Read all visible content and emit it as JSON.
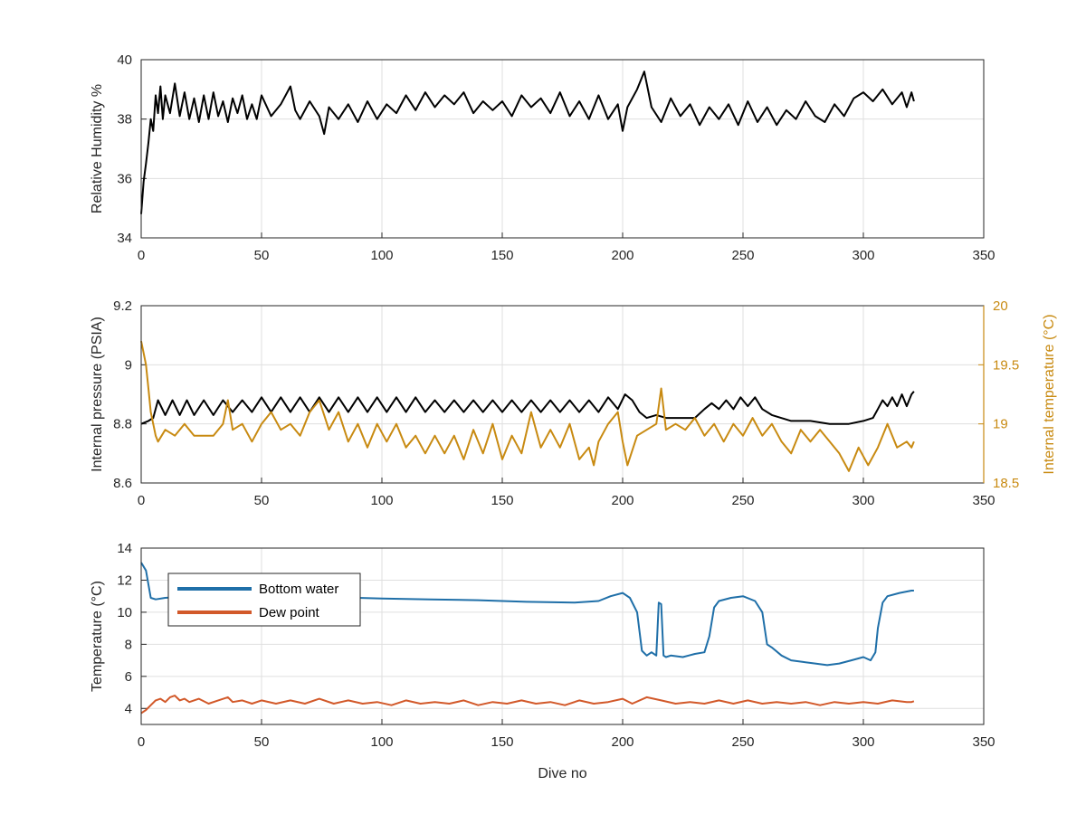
{
  "chart_data": [
    {
      "type": "line",
      "ylabel": "Relative Humidity %",
      "xlabel": "",
      "xlim": [
        0,
        350
      ],
      "ylim": [
        34,
        40
      ],
      "xticks": [
        "0",
        "50",
        "100",
        "150",
        "200",
        "250",
        "300",
        "350"
      ],
      "yticks": [
        "34",
        "36",
        "38",
        "40"
      ],
      "grid": true,
      "series": [
        {
          "color": "#000000",
          "x": [
            0,
            1,
            2,
            3,
            4,
            5,
            6,
            7,
            8,
            9,
            10,
            12,
            14,
            16,
            18,
            20,
            22,
            24,
            26,
            28,
            30,
            32,
            34,
            36,
            38,
            40,
            42,
            44,
            46,
            48,
            50,
            54,
            58,
            62,
            64,
            66,
            70,
            74,
            76,
            78,
            82,
            86,
            90,
            94,
            98,
            102,
            106,
            110,
            114,
            118,
            122,
            126,
            130,
            134,
            138,
            142,
            146,
            150,
            154,
            158,
            162,
            166,
            170,
            174,
            178,
            182,
            186,
            190,
            194,
            198,
            200,
            202,
            206,
            209,
            212,
            216,
            220,
            224,
            228,
            232,
            236,
            240,
            244,
            248,
            252,
            256,
            260,
            264,
            268,
            272,
            276,
            280,
            284,
            288,
            292,
            296,
            300,
            304,
            308,
            312,
            316,
            318,
            320,
            321
          ],
          "y": [
            34.8,
            35.9,
            36.5,
            37.2,
            38.0,
            37.6,
            38.8,
            38.2,
            39.1,
            38.0,
            38.8,
            38.2,
            39.2,
            38.1,
            38.9,
            38.0,
            38.7,
            37.9,
            38.8,
            38.0,
            38.9,
            38.1,
            38.6,
            37.9,
            38.7,
            38.2,
            38.8,
            38.0,
            38.5,
            38.0,
            38.8,
            38.1,
            38.5,
            39.1,
            38.3,
            38.0,
            38.6,
            38.1,
            37.5,
            38.4,
            38.0,
            38.5,
            37.9,
            38.6,
            38.0,
            38.5,
            38.2,
            38.8,
            38.3,
            38.9,
            38.4,
            38.8,
            38.5,
            38.9,
            38.2,
            38.6,
            38.3,
            38.6,
            38.1,
            38.8,
            38.4,
            38.7,
            38.2,
            38.9,
            38.1,
            38.6,
            38.0,
            38.8,
            38.0,
            38.5,
            37.6,
            38.4,
            39.0,
            39.6,
            38.4,
            37.9,
            38.7,
            38.1,
            38.5,
            37.8,
            38.4,
            38.0,
            38.5,
            37.8,
            38.6,
            37.9,
            38.4,
            37.8,
            38.3,
            38.0,
            38.6,
            38.1,
            37.9,
            38.5,
            38.1,
            38.7,
            38.9,
            38.6,
            39.0,
            38.5,
            38.9,
            38.4,
            38.9,
            38.6
          ]
        }
      ]
    },
    {
      "type": "line",
      "ylabel": "Internal pressure (PSIA)",
      "y2label": "Internal temperature (°C)",
      "xlabel": "",
      "xlim": [
        0,
        350
      ],
      "ylim": [
        8.6,
        9.2
      ],
      "y2lim": [
        18.5,
        20
      ],
      "xticks": [
        "0",
        "50",
        "100",
        "150",
        "200",
        "250",
        "300",
        "350"
      ],
      "yticks": [
        "8.6",
        "8.8",
        "9",
        "9.2"
      ],
      "y2ticks": [
        "18.5",
        "19",
        "19.5",
        "20"
      ],
      "grid": true,
      "series": [
        {
          "axis": "left",
          "color": "#000000",
          "x": [
            0,
            3,
            5,
            7,
            10,
            13,
            16,
            19,
            22,
            26,
            30,
            34,
            38,
            42,
            46,
            50,
            54,
            58,
            62,
            66,
            70,
            74,
            78,
            82,
            86,
            90,
            94,
            98,
            102,
            106,
            110,
            114,
            118,
            122,
            126,
            130,
            134,
            138,
            142,
            146,
            150,
            154,
            158,
            162,
            166,
            170,
            174,
            178,
            182,
            186,
            190,
            194,
            198,
            201,
            204,
            207,
            210,
            214,
            218,
            224,
            230,
            234,
            237,
            240,
            243,
            246,
            249,
            252,
            255,
            258,
            262,
            270,
            278,
            286,
            294,
            300,
            304,
            306,
            308,
            310,
            312,
            314,
            316,
            318,
            320,
            321
          ],
          "y": [
            8.8,
            8.81,
            8.82,
            8.88,
            8.83,
            8.88,
            8.83,
            8.88,
            8.83,
            8.88,
            8.83,
            8.88,
            8.84,
            8.88,
            8.84,
            8.89,
            8.84,
            8.89,
            8.84,
            8.89,
            8.84,
            8.89,
            8.84,
            8.89,
            8.84,
            8.89,
            8.84,
            8.89,
            8.84,
            8.89,
            8.84,
            8.89,
            8.84,
            8.88,
            8.84,
            8.88,
            8.84,
            8.88,
            8.84,
            8.88,
            8.84,
            8.88,
            8.84,
            8.88,
            8.84,
            8.88,
            8.84,
            8.88,
            8.84,
            8.88,
            8.84,
            8.89,
            8.85,
            8.9,
            8.88,
            8.84,
            8.82,
            8.83,
            8.82,
            8.82,
            8.82,
            8.85,
            8.87,
            8.85,
            8.88,
            8.85,
            8.89,
            8.86,
            8.89,
            8.85,
            8.83,
            8.81,
            8.81,
            8.8,
            8.8,
            8.81,
            8.82,
            8.85,
            8.88,
            8.86,
            8.89,
            8.86,
            8.9,
            8.86,
            8.9,
            8.91
          ]
        },
        {
          "axis": "right",
          "color": "#c88a11",
          "x": [
            0,
            1,
            2,
            3,
            4,
            5,
            6,
            7,
            10,
            14,
            18,
            22,
            26,
            30,
            34,
            36,
            38,
            42,
            46,
            50,
            54,
            58,
            62,
            66,
            70,
            74,
            78,
            82,
            86,
            90,
            94,
            98,
            102,
            106,
            110,
            114,
            118,
            122,
            126,
            130,
            134,
            138,
            142,
            146,
            150,
            154,
            158,
            162,
            166,
            170,
            174,
            178,
            182,
            186,
            188,
            190,
            194,
            198,
            200,
            202,
            206,
            210,
            214,
            216,
            218,
            222,
            226,
            230,
            234,
            238,
            242,
            246,
            250,
            254,
            258,
            262,
            266,
            270,
            274,
            278,
            282,
            286,
            290,
            294,
            298,
            302,
            306,
            310,
            314,
            318,
            320,
            321
          ],
          "y": [
            19.7,
            19.6,
            19.5,
            19.3,
            19.1,
            19.0,
            18.9,
            18.85,
            18.95,
            18.9,
            19.0,
            18.9,
            18.9,
            18.9,
            19.0,
            19.2,
            18.95,
            19.0,
            18.85,
            19.0,
            19.1,
            18.95,
            19.0,
            18.9,
            19.1,
            19.2,
            18.95,
            19.1,
            18.85,
            19.0,
            18.8,
            19.0,
            18.85,
            19.0,
            18.8,
            18.9,
            18.75,
            18.9,
            18.75,
            18.9,
            18.7,
            18.95,
            18.75,
            19.0,
            18.7,
            18.9,
            18.75,
            19.1,
            18.8,
            18.95,
            18.8,
            19.0,
            18.7,
            18.8,
            18.65,
            18.85,
            19.0,
            19.1,
            18.85,
            18.65,
            18.9,
            18.95,
            19.0,
            19.3,
            18.95,
            19.0,
            18.95,
            19.05,
            18.9,
            19.0,
            18.85,
            19.0,
            18.9,
            19.05,
            18.9,
            19.0,
            18.85,
            18.75,
            18.95,
            18.85,
            18.95,
            18.85,
            18.75,
            18.6,
            18.8,
            18.65,
            18.8,
            19.0,
            18.8,
            18.85,
            18.8,
            18.85
          ]
        }
      ]
    },
    {
      "type": "line",
      "ylabel": "Temperature (°C)",
      "xlabel": "Dive no",
      "xlim": [
        0,
        350
      ],
      "ylim": [
        3,
        14
      ],
      "xticks": [
        "0",
        "50",
        "100",
        "150",
        "200",
        "250",
        "300",
        "350"
      ],
      "yticks": [
        "4",
        "6",
        "8",
        "10",
        "12",
        "14"
      ],
      "grid": true,
      "legend": "top-left",
      "series": [
        {
          "name": "Bottom water",
          "color": "#1f6fa8",
          "x": [
            0,
            2,
            4,
            6,
            10,
            20,
            30,
            40,
            50,
            60,
            70,
            80,
            90,
            100,
            120,
            140,
            160,
            180,
            190,
            195,
            200,
            203,
            206,
            208,
            210,
            212,
            214,
            215,
            216,
            217,
            218,
            220,
            225,
            230,
            234,
            236,
            238,
            240,
            245,
            250,
            255,
            258,
            260,
            262,
            266,
            270,
            275,
            280,
            285,
            290,
            295,
            300,
            303,
            305,
            306,
            308,
            310,
            315,
            320,
            321
          ],
          "y": [
            13.1,
            12.6,
            10.9,
            10.8,
            10.9,
            11.0,
            11.2,
            11.3,
            11.2,
            11.1,
            11.0,
            10.95,
            10.9,
            10.85,
            10.8,
            10.75,
            10.65,
            10.6,
            10.7,
            11.0,
            11.2,
            10.9,
            10.0,
            7.6,
            7.3,
            7.5,
            7.3,
            10.6,
            10.5,
            7.3,
            7.2,
            7.3,
            7.2,
            7.4,
            7.5,
            8.5,
            10.3,
            10.7,
            10.9,
            11.0,
            10.7,
            10.0,
            8.0,
            7.8,
            7.3,
            7.0,
            6.9,
            6.8,
            6.7,
            6.8,
            7.0,
            7.2,
            7.0,
            7.5,
            9.0,
            10.6,
            11.0,
            11.2,
            11.35,
            11.35
          ]
        },
        {
          "name": "Dew point",
          "color": "#d2592a",
          "x": [
            0,
            2,
            4,
            6,
            8,
            10,
            12,
            14,
            16,
            18,
            20,
            24,
            28,
            32,
            36,
            38,
            42,
            46,
            50,
            56,
            62,
            68,
            74,
            80,
            86,
            92,
            98,
            104,
            110,
            116,
            122,
            128,
            134,
            140,
            146,
            152,
            158,
            164,
            170,
            176,
            182,
            188,
            194,
            200,
            204,
            210,
            216,
            222,
            228,
            234,
            240,
            246,
            252,
            258,
            264,
            270,
            276,
            282,
            288,
            294,
            300,
            306,
            312,
            318,
            320,
            321
          ],
          "y": [
            3.7,
            3.9,
            4.2,
            4.5,
            4.6,
            4.4,
            4.7,
            4.8,
            4.5,
            4.6,
            4.4,
            4.6,
            4.3,
            4.5,
            4.7,
            4.4,
            4.5,
            4.3,
            4.5,
            4.3,
            4.5,
            4.3,
            4.6,
            4.3,
            4.5,
            4.3,
            4.4,
            4.2,
            4.5,
            4.3,
            4.4,
            4.3,
            4.5,
            4.2,
            4.4,
            4.3,
            4.5,
            4.3,
            4.4,
            4.2,
            4.5,
            4.3,
            4.4,
            4.6,
            4.3,
            4.7,
            4.5,
            4.3,
            4.4,
            4.3,
            4.5,
            4.3,
            4.5,
            4.3,
            4.4,
            4.3,
            4.4,
            4.2,
            4.4,
            4.3,
            4.4,
            4.3,
            4.5,
            4.4,
            4.4,
            4.45
          ]
        }
      ]
    }
  ]
}
